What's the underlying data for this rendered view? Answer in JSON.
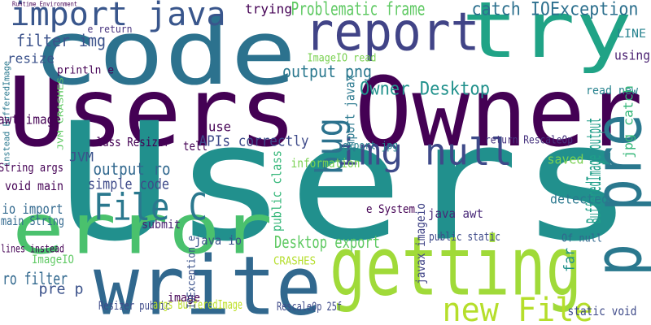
{
  "words": [
    {
      "text": "Users Owner",
      "color": "#440154"
    },
    {
      "text": "Users",
      "color": "#21908d"
    },
    {
      "text": "code",
      "color": "#2c728e"
    },
    {
      "text": "write",
      "color": "#31688e"
    },
    {
      "text": "getting",
      "color": "#a0da39"
    },
    {
      "text": "error",
      "color": "#4ac16d"
    },
    {
      "text": "try",
      "color": "#20a386"
    },
    {
      "text": "report",
      "color": "#414487"
    },
    {
      "text": "p pre",
      "color": "#2a788e"
    },
    {
      "text": "bug",
      "color": "#2c728e"
    },
    {
      "text": "img null",
      "color": "#3e4a89"
    },
    {
      "text": "import java",
      "color": "#39568c"
    },
    {
      "text": "File C",
      "color": "#2a788e"
    },
    {
      "text": "new File",
      "color": "#b5de2b"
    },
    {
      "text": "Problematic frame",
      "color": "#5ec962"
    },
    {
      "text": "catch IOException",
      "color": "#2d708e"
    },
    {
      "text": "trying",
      "color": "#440154"
    },
    {
      "text": "filter img",
      "color": "#3b528b"
    },
    {
      "text": "e return",
      "color": "#46327e"
    },
    {
      "text": "resize",
      "color": "#3b528b"
    },
    {
      "text": "ImageIO read",
      "color": "#7ad151"
    },
    {
      "text": "output png",
      "color": "#2a788e"
    },
    {
      "text": "Owner Desktop",
      "color": "#21918c"
    },
    {
      "text": "BufferedImage output",
      "color": "#1f9e89"
    },
    {
      "text": "using",
      "color": "#481f70"
    },
    {
      "text": "LINE",
      "color": "#26828e"
    },
    {
      "text": "read new",
      "color": "#26828e"
    },
    {
      "text": "jpg catch",
      "color": "#35b779"
    },
    {
      "text": "println e",
      "color": "#440154"
    },
    {
      "text": "instead BufferedImage",
      "color": "#2a788e"
    },
    {
      "text": "JVM CRASHES",
      "color": "#5ec962"
    },
    {
      "text": "awt image",
      "color": "#440154"
    },
    {
      "text": "class Resizer",
      "color": "#440154"
    },
    {
      "text": "tell",
      "color": "#440154"
    },
    {
      "text": "APIs correctly",
      "color": "#3e4a89"
    },
    {
      "text": "use",
      "color": "#440154"
    },
    {
      "text": "JVM",
      "color": "#3b528b"
    },
    {
      "text": "String args",
      "color": "#440154"
    },
    {
      "text": "output ro",
      "color": "#31688e"
    },
    {
      "text": "simple code",
      "color": "#3e4a89"
    },
    {
      "text": "void main",
      "color": "#440154"
    },
    {
      "text": "io import",
      "color": "#31688e"
    },
    {
      "text": "main String",
      "color": "#31688e"
    },
    {
      "text": "submit",
      "color": "#481f70"
    },
    {
      "text": "java io",
      "color": "#3b528b"
    },
    {
      "text": "Desktop export",
      "color": "#5ec962"
    },
    {
      "text": "public class",
      "color": "#35b779"
    },
    {
      "text": "information",
      "color": "#7ad151"
    },
    {
      "text": "export jpg",
      "color": "#26828e"
    },
    {
      "text": "import javax",
      "color": "#2a788e"
    },
    {
      "text": "e System",
      "color": "#440154"
    },
    {
      "text": "java awt",
      "color": "#482878"
    },
    {
      "text": "javax imageio",
      "color": "#414487"
    },
    {
      "text": "public static",
      "color": "#3e4a89"
    },
    {
      "text": "saved",
      "color": "#7ad151"
    },
    {
      "text": "detected",
      "color": "#2a788e"
    },
    {
      "text": "return RescaleOp",
      "color": "#46327e"
    },
    {
      "text": "Of null",
      "color": "#31688e"
    },
    {
      "text": "far",
      "color": "#21918c"
    },
    {
      "text": "static void",
      "color": "#3e4a89"
    },
    {
      "text": "ImageIO",
      "color": "#5ec962"
    },
    {
      "text": "lines instead",
      "color": "#440154"
    },
    {
      "text": "ro filter",
      "color": "#31688e"
    },
    {
      "text": "pre p",
      "color": "#3b528b"
    },
    {
      "text": "Resizer public",
      "color": "#3e4a89"
    },
    {
      "text": "args BufferedImage",
      "color": "#bddf26"
    },
    {
      "text": "image",
      "color": "#440154"
    },
    {
      "text": "CRASHES",
      "color": "#b5de2b"
    },
    {
      "text": "RescaleOp 25f",
      "color": "#3e4a89"
    },
    {
      "text": "IOException e",
      "color": "#3b528b"
    },
    {
      "text": "Runtime Environment",
      "color": "#440154"
    }
  ]
}
